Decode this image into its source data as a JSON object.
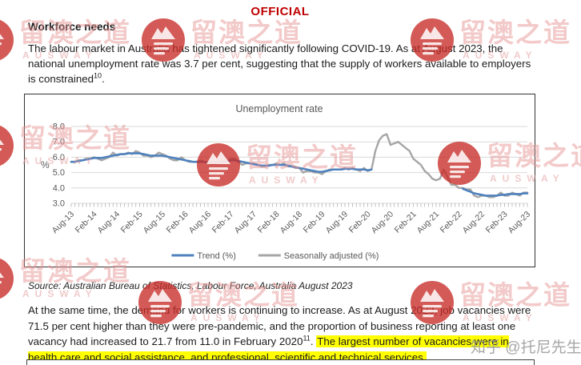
{
  "header": {
    "classification": "OFFICIAL"
  },
  "document": {
    "heading": "Workforce needs",
    "paragraph1": {
      "text": "The labour market in Australia has tightened significantly following COVID-19. As at August 2023, the national unemployment rate was 3.7 per cent, suggesting that the supply of workers available to employers is constrained",
      "footnote": "10",
      "after_footnote": "."
    },
    "source_note": "Source: Australian Bureau of Statistics, Labour Force, Australia August 2023",
    "paragraph2": {
      "text": "At the same time, the demand for workers is continuing to increase. As at August 2023, job vacancies were 71.5 per cent higher than they were pre-pandemic, and the proportion of business reporting at least one vacancy had increased to 21.7 from 11.0 in February 2020",
      "footnote": "11",
      "after_footnote": ". ",
      "highlighted_text": "The largest number of vacancies were in health care and social assistance, and professional, scientific and technical services."
    }
  },
  "watermarks": {
    "site_cn": "留澳之道",
    "site_en": "AUSWAY",
    "zhihu": "知乎 @托尼先生",
    "badge_color": "rgba(198,44,38,0.78)",
    "emblem_color": "rgba(255,255,255,0.85)"
  },
  "chart_data": {
    "type": "line",
    "title": "Unemployment rate",
    "ylabel": "%",
    "ylim": [
      3.0,
      8.0
    ],
    "yticks": [
      "8.0",
      "7.0",
      "6.0",
      "5.0",
      "4.0",
      "3.0"
    ],
    "x_tick_labels": [
      "Aug-13",
      "Feb-14",
      "Aug-14",
      "Feb-15",
      "Aug-15",
      "Feb-16",
      "Aug-16",
      "Feb-17",
      "Aug-17",
      "Feb-18",
      "Aug-18",
      "Feb-19",
      "Aug-19",
      "Feb-20",
      "Aug-20",
      "Feb-21",
      "Aug-21",
      "Feb-22",
      "Aug-22",
      "Feb-23",
      "Aug-23"
    ],
    "x_tick_month_step": 6,
    "grid": true,
    "legend_position": "bottom",
    "series": [
      {
        "name": "Trend (%)",
        "color": "#4f81bd",
        "values": [
          5.7,
          5.7,
          5.75,
          5.8,
          5.85,
          5.9,
          5.95,
          5.95,
          5.95,
          6.0,
          6.05,
          6.1,
          6.15,
          6.2,
          6.2,
          6.25,
          6.25,
          6.25,
          6.25,
          6.2,
          6.15,
          6.1,
          6.1,
          6.1,
          6.1,
          6.05,
          6.0,
          5.95,
          5.9,
          5.85,
          5.8,
          5.75,
          5.7,
          5.7,
          5.7,
          5.7,
          5.65,
          5.6,
          5.6,
          5.65,
          5.7,
          5.75,
          5.8,
          5.8,
          5.75,
          5.7,
          5.65,
          5.6,
          5.55,
          5.5,
          5.45,
          5.45,
          5.45,
          5.5,
          5.5,
          5.5,
          5.5,
          5.45,
          5.4,
          5.35,
          5.3,
          5.25,
          5.2,
          5.15,
          5.1,
          5.05,
          5.05,
          5.1,
          5.15,
          5.2,
          5.2,
          5.2,
          5.25,
          5.25,
          5.25,
          5.2,
          5.2,
          5.2,
          5.15,
          5.2,
          null,
          null,
          null,
          null,
          null,
          null,
          null,
          null,
          null,
          null,
          null,
          null,
          null,
          null,
          null,
          null,
          null,
          null,
          null,
          null,
          null,
          null,
          null,
          3.95,
          3.85,
          3.75,
          3.65,
          3.6,
          3.55,
          3.5,
          3.5,
          3.5,
          3.5,
          3.55,
          3.55,
          3.6,
          3.6,
          3.6,
          3.6,
          3.65,
          3.65
        ]
      },
      {
        "name": "Seasonally adjusted (%)",
        "color": "#a6a6a6",
        "values": [
          5.7,
          5.7,
          5.8,
          5.8,
          5.9,
          5.9,
          6.0,
          5.9,
          5.8,
          5.9,
          6.0,
          6.3,
          6.1,
          6.2,
          6.2,
          6.3,
          6.2,
          6.4,
          6.3,
          6.1,
          6.1,
          6.0,
          6.1,
          6.3,
          6.2,
          6.1,
          5.9,
          5.8,
          5.8,
          6.0,
          5.8,
          5.7,
          5.7,
          5.7,
          5.8,
          5.7,
          5.6,
          5.6,
          5.6,
          5.7,
          5.8,
          5.7,
          5.9,
          5.9,
          5.7,
          5.5,
          5.6,
          5.6,
          5.6,
          5.5,
          5.4,
          5.4,
          5.5,
          5.5,
          5.6,
          5.5,
          5.6,
          5.4,
          5.4,
          5.3,
          5.3,
          5.0,
          5.1,
          5.1,
          5.0,
          5.0,
          4.9,
          5.1,
          5.2,
          5.2,
          5.2,
          5.2,
          5.3,
          5.2,
          5.3,
          5.2,
          5.1,
          5.3,
          5.1,
          5.2,
          6.4,
          7.1,
          7.4,
          7.5,
          6.8,
          6.9,
          7.0,
          6.8,
          6.6,
          6.4,
          5.9,
          5.7,
          5.5,
          5.1,
          4.9,
          4.6,
          4.5,
          4.6,
          5.2,
          4.7,
          4.2,
          4.2,
          4.0,
          4.0,
          3.9,
          3.9,
          3.5,
          3.4,
          3.5,
          3.5,
          3.4,
          3.4,
          3.5,
          3.7,
          3.5,
          3.5,
          3.7,
          3.6,
          3.5,
          3.7,
          3.7
        ]
      }
    ]
  }
}
